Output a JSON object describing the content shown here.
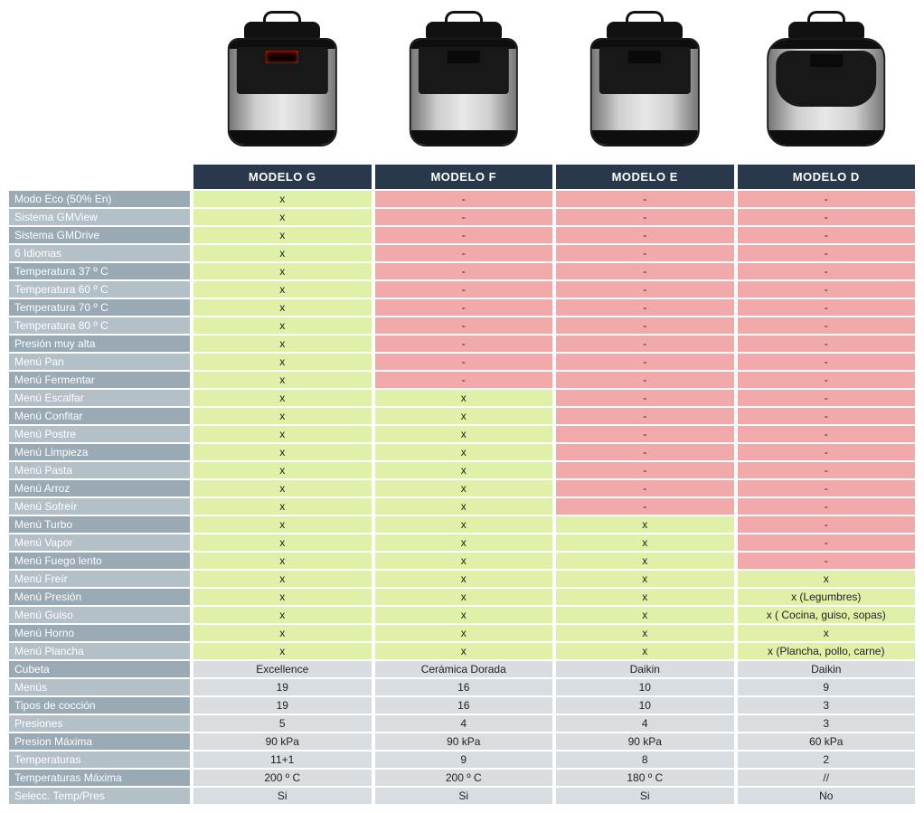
{
  "type": "comparison-table",
  "colors": {
    "header_bg": "#29384a",
    "header_text": "#ffffff",
    "label_bg": "#9aaab5",
    "label_bg_alt": "#b4c0c8",
    "yes_bg": "#dff0a9",
    "no_bg": "#f1a9a9",
    "neutral_bg": "#d8dde1",
    "text": "#222222"
  },
  "models": [
    "MODELO G",
    "MODELO F",
    "MODELO E",
    "MODELO D"
  ],
  "rows": [
    {
      "label": "Modo Eco (50% En)",
      "kind": "feat",
      "cells": [
        {
          "v": "x",
          "s": "y"
        },
        {
          "v": "-",
          "s": "n"
        },
        {
          "v": "-",
          "s": "n"
        },
        {
          "v": "-",
          "s": "n"
        }
      ]
    },
    {
      "label": "Sistema GMView",
      "kind": "feat",
      "cells": [
        {
          "v": "x",
          "s": "y"
        },
        {
          "v": "-",
          "s": "n"
        },
        {
          "v": "-",
          "s": "n"
        },
        {
          "v": "-",
          "s": "n"
        }
      ]
    },
    {
      "label": "Sistema GMDrive",
      "kind": "feat",
      "cells": [
        {
          "v": "x",
          "s": "y"
        },
        {
          "v": "-",
          "s": "n"
        },
        {
          "v": "-",
          "s": "n"
        },
        {
          "v": "-",
          "s": "n"
        }
      ]
    },
    {
      "label": "6 Idiomas",
      "kind": "feat",
      "cells": [
        {
          "v": "x",
          "s": "y"
        },
        {
          "v": "-",
          "s": "n"
        },
        {
          "v": "-",
          "s": "n"
        },
        {
          "v": "-",
          "s": "n"
        }
      ]
    },
    {
      "label": "Temperatura 37 º C",
      "kind": "feat",
      "cells": [
        {
          "v": "x",
          "s": "y"
        },
        {
          "v": "-",
          "s": "n"
        },
        {
          "v": "-",
          "s": "n"
        },
        {
          "v": "-",
          "s": "n"
        }
      ]
    },
    {
      "label": "Temperatura 60 º C",
      "kind": "feat",
      "cells": [
        {
          "v": "x",
          "s": "y"
        },
        {
          "v": "-",
          "s": "n"
        },
        {
          "v": "-",
          "s": "n"
        },
        {
          "v": "-",
          "s": "n"
        }
      ]
    },
    {
      "label": "Temperatura 70 º C",
      "kind": "feat",
      "cells": [
        {
          "v": "x",
          "s": "y"
        },
        {
          "v": "-",
          "s": "n"
        },
        {
          "v": "-",
          "s": "n"
        },
        {
          "v": "-",
          "s": "n"
        }
      ]
    },
    {
      "label": "Temperatura 80 º C",
      "kind": "feat",
      "cells": [
        {
          "v": "x",
          "s": "y"
        },
        {
          "v": "-",
          "s": "n"
        },
        {
          "v": "-",
          "s": "n"
        },
        {
          "v": "-",
          "s": "n"
        }
      ]
    },
    {
      "label": "Presión muy alta",
      "kind": "feat",
      "cells": [
        {
          "v": "x",
          "s": "y"
        },
        {
          "v": "-",
          "s": "n"
        },
        {
          "v": "-",
          "s": "n"
        },
        {
          "v": "-",
          "s": "n"
        }
      ]
    },
    {
      "label": "Menú Pan",
      "kind": "feat",
      "cells": [
        {
          "v": "x",
          "s": "y"
        },
        {
          "v": "-",
          "s": "n"
        },
        {
          "v": "-",
          "s": "n"
        },
        {
          "v": "-",
          "s": "n"
        }
      ]
    },
    {
      "label": "Menú Fermentar",
      "kind": "feat",
      "cells": [
        {
          "v": "x",
          "s": "y"
        },
        {
          "v": "-",
          "s": "n"
        },
        {
          "v": "-",
          "s": "n"
        },
        {
          "v": "-",
          "s": "n"
        }
      ]
    },
    {
      "label": "Menú Escalfar",
      "kind": "feat",
      "cells": [
        {
          "v": "x",
          "s": "y"
        },
        {
          "v": "x",
          "s": "y"
        },
        {
          "v": "-",
          "s": "n"
        },
        {
          "v": "-",
          "s": "n"
        }
      ]
    },
    {
      "label": "Menú Confitar",
      "kind": "feat",
      "cells": [
        {
          "v": "x",
          "s": "y"
        },
        {
          "v": "x",
          "s": "y"
        },
        {
          "v": "-",
          "s": "n"
        },
        {
          "v": "-",
          "s": "n"
        }
      ]
    },
    {
      "label": "Menú Postre",
      "kind": "feat",
      "cells": [
        {
          "v": "x",
          "s": "y"
        },
        {
          "v": "x",
          "s": "y"
        },
        {
          "v": "-",
          "s": "n"
        },
        {
          "v": "-",
          "s": "n"
        }
      ]
    },
    {
      "label": "Menú Limpieza",
      "kind": "feat",
      "cells": [
        {
          "v": "x",
          "s": "y"
        },
        {
          "v": "x",
          "s": "y"
        },
        {
          "v": "-",
          "s": "n"
        },
        {
          "v": "-",
          "s": "n"
        }
      ]
    },
    {
      "label": "Menú Pasta",
      "kind": "feat",
      "cells": [
        {
          "v": "x",
          "s": "y"
        },
        {
          "v": "x",
          "s": "y"
        },
        {
          "v": "-",
          "s": "n"
        },
        {
          "v": "-",
          "s": "n"
        }
      ]
    },
    {
      "label": "Menú Arroz",
      "kind": "feat",
      "cells": [
        {
          "v": "x",
          "s": "y"
        },
        {
          "v": "x",
          "s": "y"
        },
        {
          "v": "-",
          "s": "n"
        },
        {
          "v": "-",
          "s": "n"
        }
      ]
    },
    {
      "label": "Menú Sofreír",
      "kind": "feat",
      "cells": [
        {
          "v": "x",
          "s": "y"
        },
        {
          "v": "x",
          "s": "y"
        },
        {
          "v": "-",
          "s": "n"
        },
        {
          "v": "-",
          "s": "n"
        }
      ]
    },
    {
      "label": "Menú Turbo",
      "kind": "feat",
      "cells": [
        {
          "v": "x",
          "s": "y"
        },
        {
          "v": "x",
          "s": "y"
        },
        {
          "v": "x",
          "s": "y"
        },
        {
          "v": "-",
          "s": "n"
        }
      ]
    },
    {
      "label": "Menú Vapor",
      "kind": "feat",
      "cells": [
        {
          "v": "x",
          "s": "y"
        },
        {
          "v": "x",
          "s": "y"
        },
        {
          "v": "x",
          "s": "y"
        },
        {
          "v": "-",
          "s": "n"
        }
      ]
    },
    {
      "label": "Menú Fuego lento",
      "kind": "feat",
      "cells": [
        {
          "v": "x",
          "s": "y"
        },
        {
          "v": "x",
          "s": "y"
        },
        {
          "v": "x",
          "s": "y"
        },
        {
          "v": "-",
          "s": "n"
        }
      ]
    },
    {
      "label": "Menú Freír",
      "kind": "feat",
      "cells": [
        {
          "v": "x",
          "s": "y"
        },
        {
          "v": "x",
          "s": "y"
        },
        {
          "v": "x",
          "s": "y"
        },
        {
          "v": "x",
          "s": "y"
        }
      ]
    },
    {
      "label": "Menú Presión",
      "kind": "feat",
      "cells": [
        {
          "v": "x",
          "s": "y"
        },
        {
          "v": "x",
          "s": "y"
        },
        {
          "v": "x",
          "s": "y"
        },
        {
          "v": "x (Legumbres)",
          "s": "y"
        }
      ]
    },
    {
      "label": "Menú Guiso",
      "kind": "feat",
      "cells": [
        {
          "v": "x",
          "s": "y"
        },
        {
          "v": "x",
          "s": "y"
        },
        {
          "v": "x",
          "s": "y"
        },
        {
          "v": "x ( Cocina, guiso, sopas)",
          "s": "y"
        }
      ]
    },
    {
      "label": "Menú Horno",
      "kind": "feat",
      "cells": [
        {
          "v": "x",
          "s": "y"
        },
        {
          "v": "x",
          "s": "y"
        },
        {
          "v": "x",
          "s": "y"
        },
        {
          "v": "x",
          "s": "y"
        }
      ]
    },
    {
      "label": "Menú Plancha",
      "kind": "feat",
      "cells": [
        {
          "v": "x",
          "s": "y"
        },
        {
          "v": "x",
          "s": "y"
        },
        {
          "v": "x",
          "s": "y"
        },
        {
          "v": "x (Plancha, pollo, carne)",
          "s": "y"
        }
      ]
    },
    {
      "label": "Cubeta",
      "kind": "spec",
      "cells": [
        {
          "v": "Excellence",
          "s": "m"
        },
        {
          "v": "Cerámica Dorada",
          "s": "m"
        },
        {
          "v": "Daikin",
          "s": "m"
        },
        {
          "v": "Daikin",
          "s": "m"
        }
      ]
    },
    {
      "label": "Menús",
      "kind": "spec",
      "cells": [
        {
          "v": "19",
          "s": "m"
        },
        {
          "v": "16",
          "s": "m"
        },
        {
          "v": "10",
          "s": "m"
        },
        {
          "v": "9",
          "s": "m"
        }
      ]
    },
    {
      "label": "Tipos de cocción",
      "kind": "spec",
      "cells": [
        {
          "v": "19",
          "s": "m"
        },
        {
          "v": "16",
          "s": "m"
        },
        {
          "v": "10",
          "s": "m"
        },
        {
          "v": "3",
          "s": "m"
        }
      ]
    },
    {
      "label": "Presiones",
      "kind": "spec",
      "cells": [
        {
          "v": "5",
          "s": "m"
        },
        {
          "v": "4",
          "s": "m"
        },
        {
          "v": "4",
          "s": "m"
        },
        {
          "v": "3",
          "s": "m"
        }
      ]
    },
    {
      "label": "Presion Máxima",
      "kind": "spec",
      "cells": [
        {
          "v": "90 kPa",
          "s": "m"
        },
        {
          "v": "90 kPa",
          "s": "m"
        },
        {
          "v": "90 kPa",
          "s": "m"
        },
        {
          "v": "60 kPa",
          "s": "m"
        }
      ]
    },
    {
      "label": "Temperaturas",
      "kind": "spec",
      "cells": [
        {
          "v": "11+1",
          "s": "m"
        },
        {
          "v": "9",
          "s": "m"
        },
        {
          "v": "8",
          "s": "m"
        },
        {
          "v": "2",
          "s": "m"
        }
      ]
    },
    {
      "label": "Temperaturas Máxima",
      "kind": "spec",
      "cells": [
        {
          "v": "200 º C",
          "s": "m"
        },
        {
          "v": "200 º C",
          "s": "m"
        },
        {
          "v": "180 º C",
          "s": "m"
        },
        {
          "v": "//",
          "s": "m"
        }
      ]
    },
    {
      "label": "Selecc. Temp/Pres",
      "kind": "spec",
      "cells": [
        {
          "v": "Si",
          "s": "m"
        },
        {
          "v": "Si",
          "s": "m"
        },
        {
          "v": "Si",
          "s": "m"
        },
        {
          "v": "No",
          "s": "m"
        }
      ]
    }
  ],
  "status_bg": {
    "y": "#dff0a9",
    "n": "#f1a9a9",
    "m": "#d8dde1"
  }
}
